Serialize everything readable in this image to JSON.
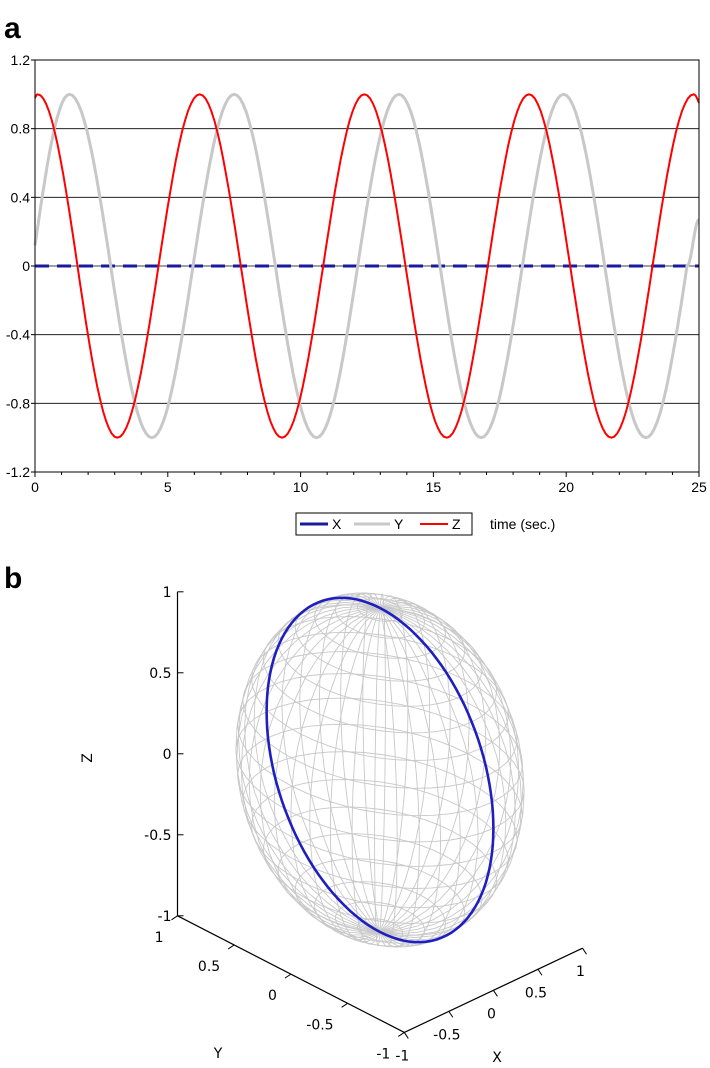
{
  "panels": {
    "a": {
      "label": "a"
    },
    "b": {
      "label": "b"
    }
  },
  "chart_data": [
    {
      "type": "line",
      "panel": "a",
      "xlabel": "time (sec.)",
      "ylabel": "",
      "xlim": [
        0,
        25
      ],
      "ylim": [
        -1.2,
        1.2
      ],
      "xticks": [
        0,
        5,
        10,
        15,
        20,
        25
      ],
      "yticks": [
        1.2,
        0.8,
        0.4,
        0,
        -0.4,
        -0.8,
        -1.2
      ],
      "ytick_labels": [
        "1.2",
        "0.8",
        "0.4",
        "0",
        "-0.4",
        "-0.8",
        "-1.2"
      ],
      "grid": "horizontal",
      "legend": "below",
      "colors": {
        "X": "#1a1a9c",
        "Y": "#c8c8c8",
        "Z": "#ff0000"
      },
      "series": [
        {
          "name": "X",
          "style": "dashed",
          "x": [
            0,
            25
          ],
          "values": [
            0,
            0
          ]
        },
        {
          "name": "Y",
          "style": "solid",
          "x": [
            0,
            1.3,
            2.85,
            4.4,
            5.95,
            7.5,
            9.05,
            10.6,
            12.15,
            13.7,
            15.25,
            16.8,
            18.35,
            19.9,
            21.45,
            23.0,
            24.55,
            25
          ],
          "values": [
            0.12,
            1.0,
            0,
            -1.0,
            0,
            1.0,
            0,
            -1.0,
            0,
            1.0,
            0,
            -1.0,
            0,
            1.0,
            0,
            -1.0,
            0,
            0.27
          ]
        },
        {
          "name": "Z",
          "style": "solid",
          "x": [
            0,
            0.1,
            1.6,
            3.1,
            4.65,
            6.2,
            7.75,
            9.3,
            10.85,
            12.4,
            13.95,
            15.5,
            17.05,
            18.6,
            20.15,
            21.7,
            23.25,
            24.8,
            25
          ],
          "values": [
            0.98,
            1.0,
            0,
            -1.0,
            0,
            1.0,
            0,
            -1.0,
            0,
            1.0,
            0,
            -1.0,
            0,
            1.0,
            0,
            -1.0,
            0,
            1.0,
            0.95
          ]
        }
      ]
    },
    {
      "type": "3d-line",
      "panel": "b",
      "xlabel": "X",
      "ylabel": "Y",
      "zlabel": "Z",
      "xlim": [
        -1,
        1
      ],
      "ylim": [
        -1,
        1
      ],
      "zlim": [
        -1,
        1
      ],
      "xticks": [
        -1,
        -0.5,
        0,
        0.5,
        1
      ],
      "yticks": [
        -1,
        -0.5,
        0,
        0.5,
        1
      ],
      "zticks": [
        -1,
        -0.5,
        0,
        0.5,
        1
      ],
      "xtick_labels": [
        "-1",
        "-0.5",
        "0",
        "0.5",
        "1"
      ],
      "ytick_labels": [
        "-1",
        "-0.5",
        "0",
        "0.5",
        "1"
      ],
      "ztick_labels": [
        "-1",
        "-0.5",
        "0",
        "0.5",
        "1"
      ],
      "surface": "unit sphere wireframe",
      "colors": {
        "sphere": "#c8c8c8",
        "trajectory": "#1f1fbf"
      },
      "series": [
        {
          "description_of_path": "great circle, x = 0",
          "x": [
            0,
            0,
            0,
            0,
            0,
            0,
            0,
            0,
            0
          ],
          "y": [
            1,
            0.707,
            0,
            -0.707,
            -1,
            -0.707,
            0,
            0.707,
            1
          ],
          "z": [
            0,
            0.707,
            1,
            0.707,
            0,
            -0.707,
            -1,
            -0.707,
            0
          ]
        }
      ]
    }
  ]
}
